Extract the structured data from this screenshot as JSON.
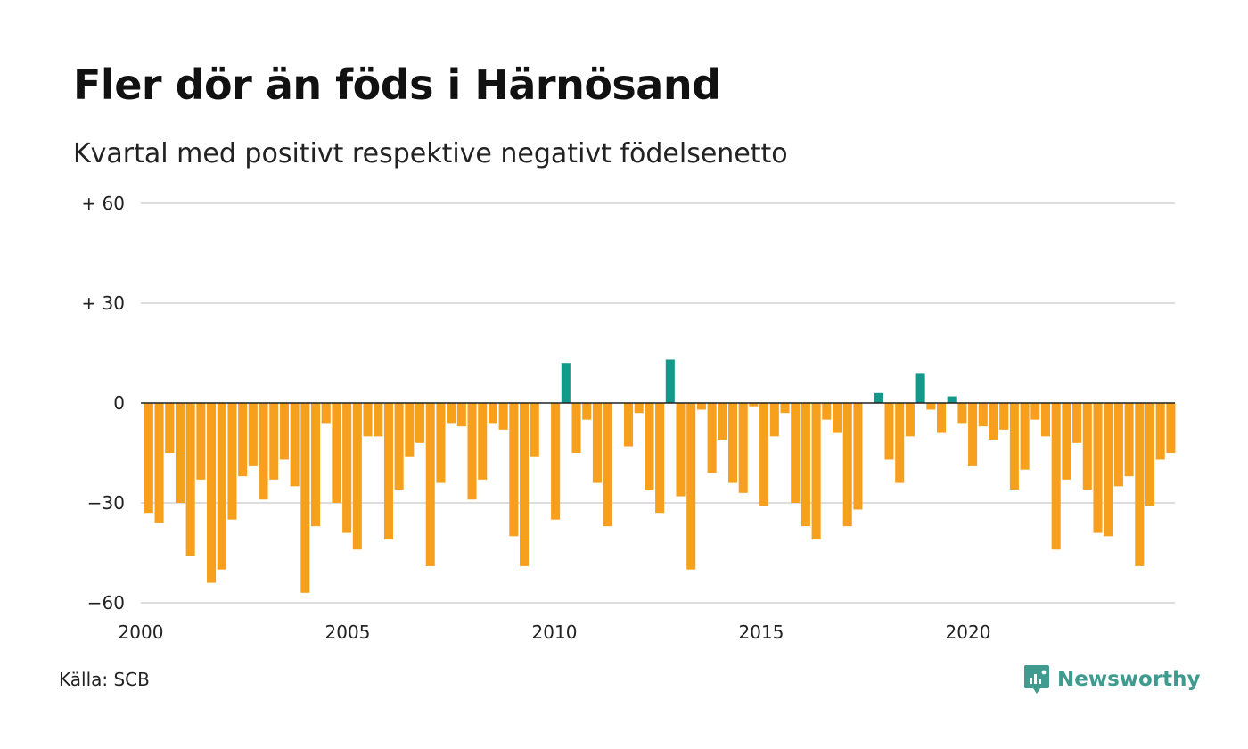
{
  "title": "Fler dör än föds i Härnösand",
  "subtitle": "Kvartal med positivt respektive negativt födelsenetto",
  "source": "Källa: SCB",
  "brand": {
    "name": "Newsworthy",
    "icon": "newsworthy-logo-icon",
    "color": "#3f9b8f"
  },
  "colors": {
    "negative": "#f7a01d",
    "positive": "#13998a",
    "grid": "#dddddd",
    "zero_line": "#222222"
  },
  "chart_data": {
    "type": "bar",
    "title": "Fler dör än föds i Härnösand",
    "subtitle": "Kvartal med positivt respektive negativt födelsenetto",
    "xlabel": "",
    "ylabel": "",
    "x_start": 2000,
    "x_end": 2025,
    "x_ticks": [
      2000,
      2005,
      2010,
      2015,
      2020
    ],
    "x_tick_labels": [
      "2000",
      "2005",
      "2010",
      "2015",
      "2020"
    ],
    "ylim": [
      -60,
      60
    ],
    "y_ticks": [
      60,
      30,
      0,
      -30,
      -60
    ],
    "y_tick_labels": [
      "+ 60",
      "+ 30",
      "0",
      "−30",
      "−60"
    ],
    "grid": true,
    "legend": "none",
    "periods_per_year": 4,
    "values": [
      -33,
      -36,
      -15,
      -30,
      -46,
      -23,
      -54,
      -50,
      -35,
      -22,
      -19,
      -29,
      -23,
      -17,
      -25,
      -57,
      -37,
      -6,
      -30,
      -39,
      -44,
      -10,
      -10,
      -41,
      -26,
      -16,
      -12,
      -49,
      -24,
      -6,
      -7,
      -29,
      -23,
      -6,
      -8,
      -40,
      -49,
      -16,
      0,
      -35,
      12,
      -15,
      -5,
      -24,
      -37,
      0,
      -13,
      -3,
      -26,
      -33,
      13,
      -28,
      -50,
      -2,
      -21,
      -11,
      -24,
      -27,
      -1,
      -31,
      -10,
      -3,
      -30,
      -37,
      -41,
      -5,
      -9,
      -37,
      -32,
      0,
      3,
      -17,
      -24,
      -10,
      9,
      -2,
      -9,
      2,
      -6,
      -19,
      -7,
      -11,
      -8,
      -26,
      -20,
      -5,
      -10,
      -44,
      -23,
      -12,
      -26,
      -39,
      -40,
      -25,
      -22,
      -49,
      -31,
      -17,
      -15
    ]
  }
}
